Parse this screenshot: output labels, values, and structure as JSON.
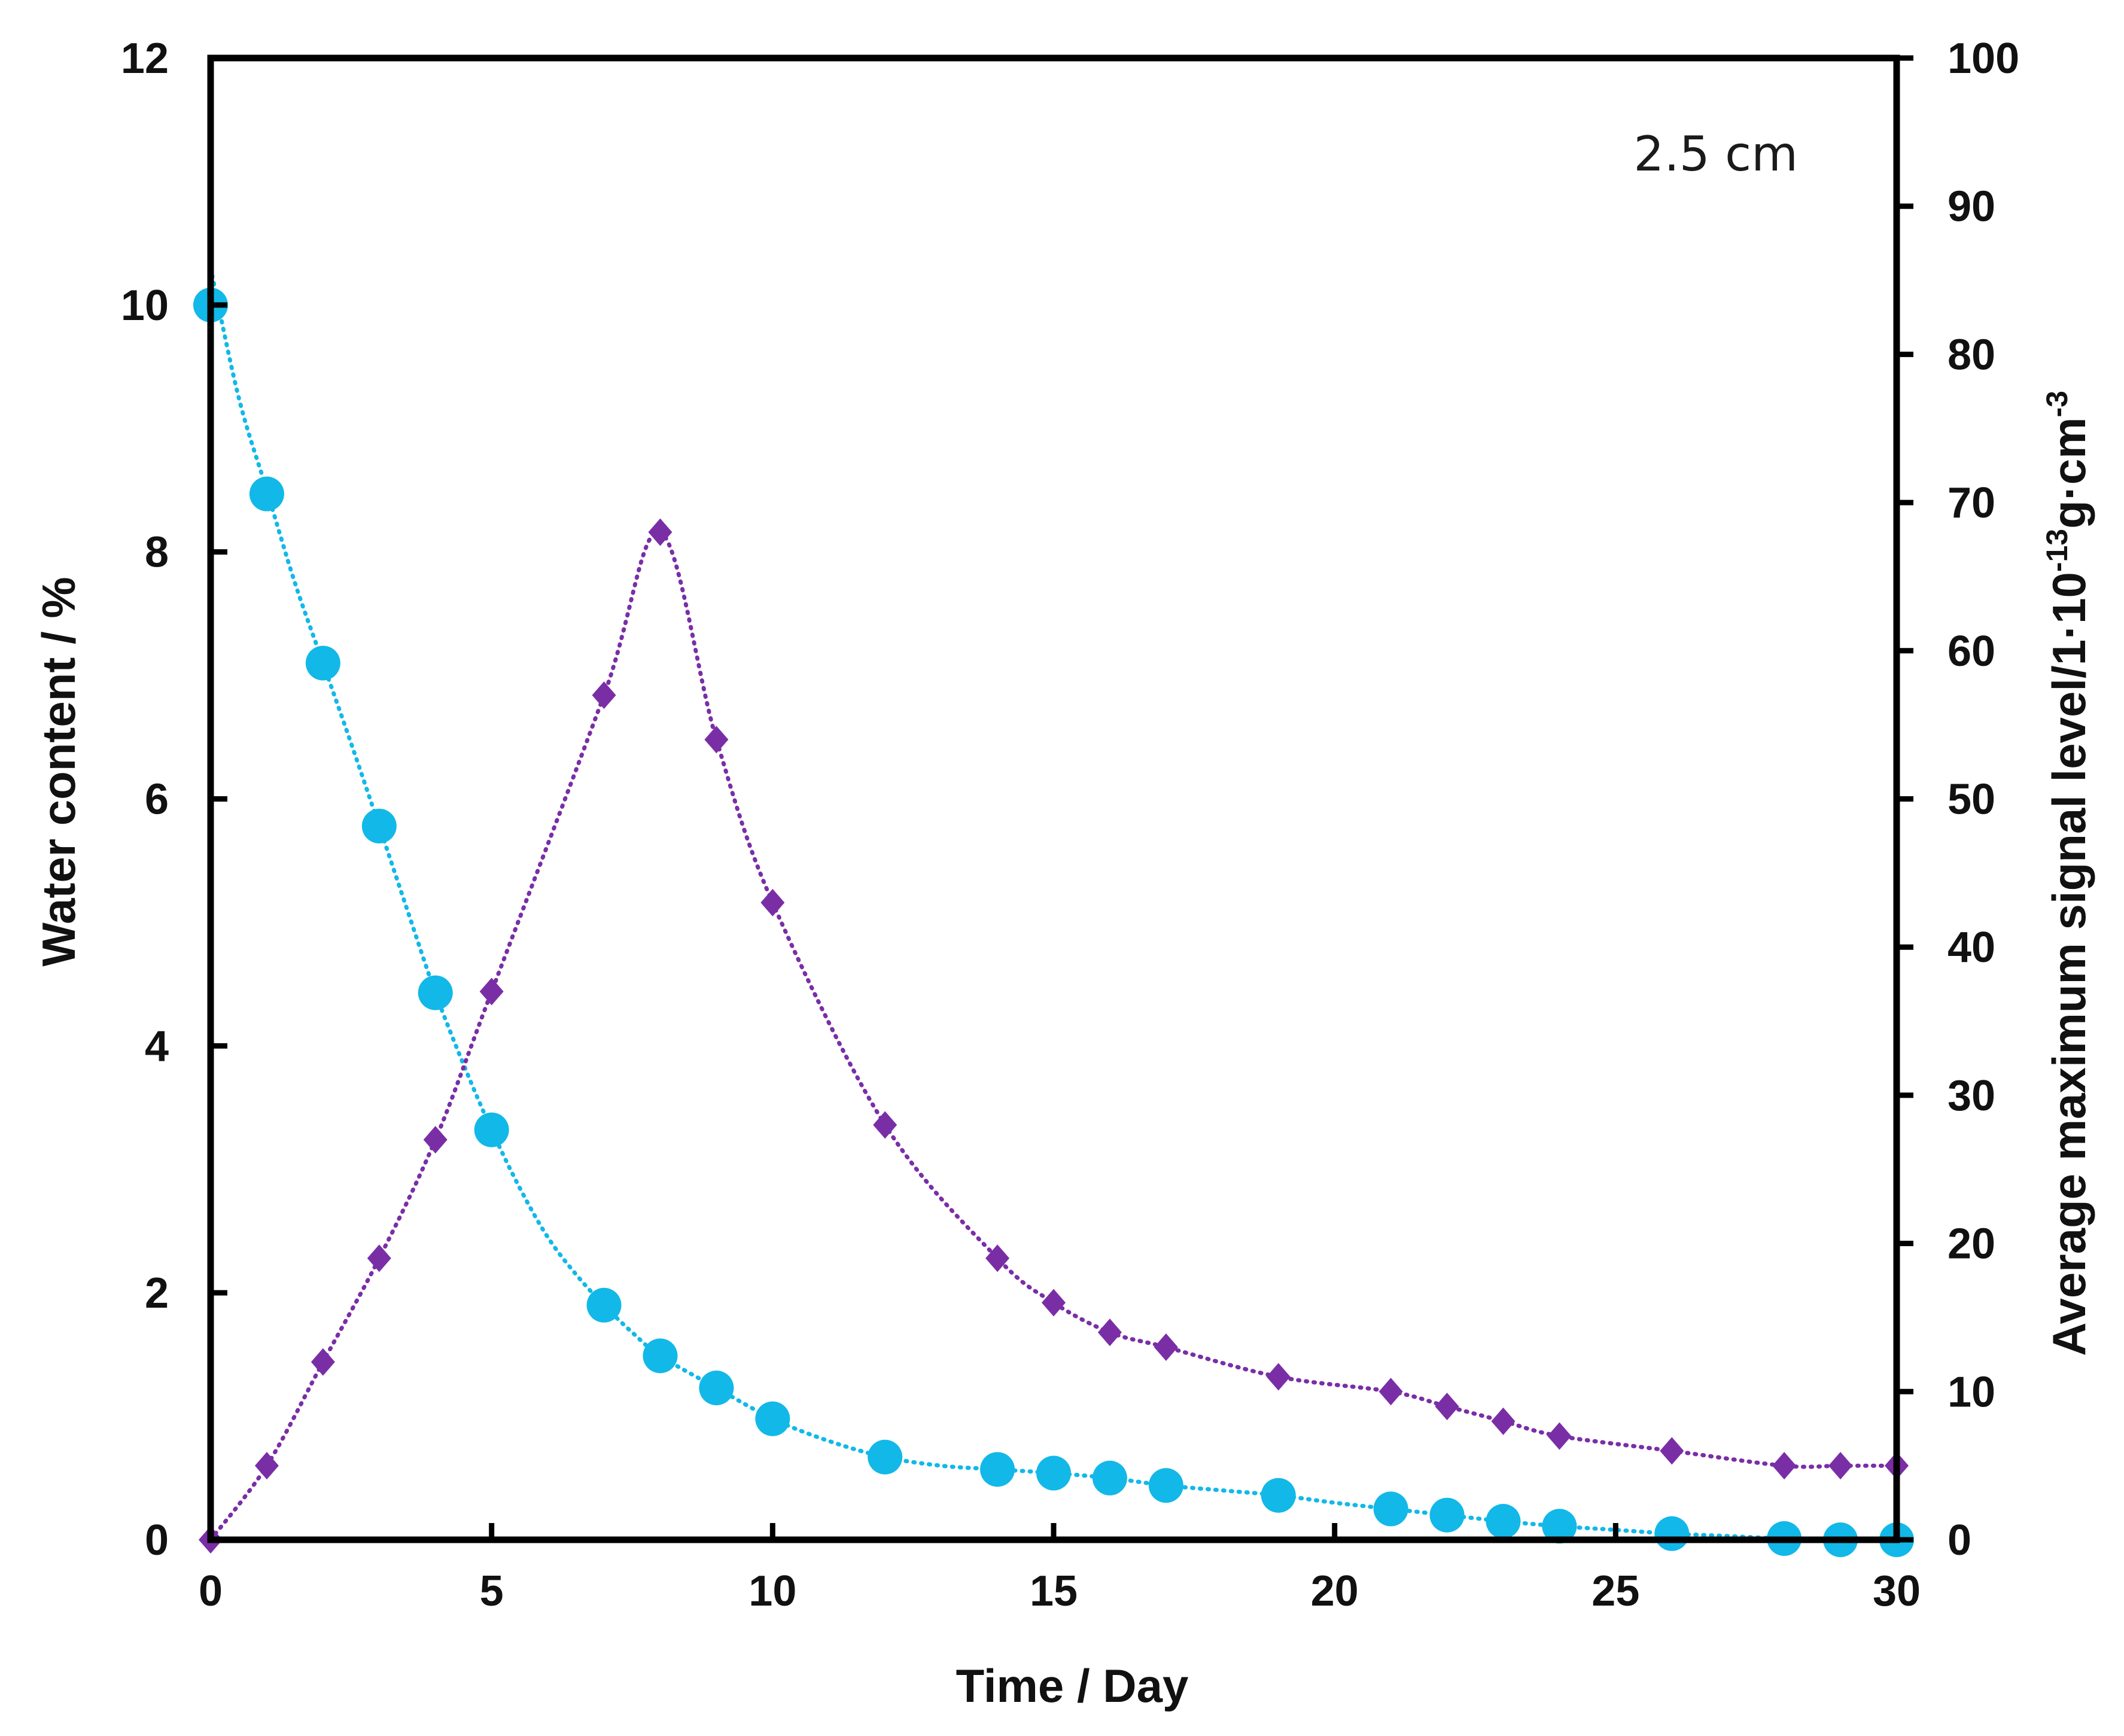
{
  "chart_data": {
    "type": "scatter",
    "title": "",
    "annotation": "2.5 cm",
    "xlabel": "Time / Day",
    "ylabel_left": "Water content / %",
    "ylabel_right": {
      "prefix": "Average maximum signal level/1·10",
      "exp1": "-13",
      "mid": "g·cm",
      "exp2": "-3"
    },
    "xlim": [
      0,
      30
    ],
    "ylim_left": [
      0,
      12
    ],
    "ylim_right": [
      0,
      100
    ],
    "x_ticks": [
      "0",
      "5",
      "10",
      "15",
      "20",
      "25",
      "30"
    ],
    "y_left_ticks": [
      "0",
      "2",
      "4",
      "6",
      "8",
      "10",
      "12"
    ],
    "y_right_ticks": [
      "0",
      "10",
      "20",
      "30",
      "40",
      "50",
      "60",
      "70",
      "80",
      "90",
      "100"
    ],
    "grid": false,
    "series": [
      {
        "name": "Water content",
        "axis": "left",
        "marker": "circle",
        "color": "#12b8e8",
        "x": [
          0,
          1,
          2,
          3,
          4,
          5,
          7,
          8,
          9,
          10,
          12,
          14,
          15,
          16,
          17,
          19,
          21,
          22,
          23,
          24,
          26,
          28,
          29,
          30
        ],
        "y": [
          10.0,
          8.47,
          7.1,
          5.78,
          4.43,
          3.32,
          1.9,
          1.49,
          1.23,
          0.98,
          0.67,
          0.57,
          0.54,
          0.5,
          0.44,
          0.36,
          0.25,
          0.2,
          0.15,
          0.11,
          0.05,
          0.01,
          0.0,
          0.0
        ],
        "fit_line": {
          "x": [
            0,
            0.5,
            1,
            1.5,
            2,
            2.5,
            3,
            3.5,
            4,
            4.5,
            5,
            5.5,
            6,
            6.5,
            7,
            7.5,
            8,
            9,
            10,
            11,
            12,
            13,
            14,
            15,
            16,
            17,
            18,
            19,
            20,
            21,
            22,
            23,
            24,
            25,
            26,
            27,
            28,
            29,
            30
          ],
          "y": [
            10.3,
            9.25,
            8.5,
            7.75,
            7.1,
            6.45,
            5.78,
            5.1,
            4.43,
            3.85,
            3.32,
            2.85,
            2.45,
            2.15,
            1.9,
            1.68,
            1.49,
            1.23,
            0.98,
            0.8,
            0.67,
            0.6,
            0.57,
            0.54,
            0.5,
            0.44,
            0.4,
            0.36,
            0.3,
            0.25,
            0.2,
            0.15,
            0.11,
            0.08,
            0.05,
            0.03,
            0.01,
            0.0,
            0.0
          ]
        }
      },
      {
        "name": "Average maximum signal level",
        "axis": "right",
        "marker": "diamond",
        "color": "#7a2ea6",
        "x": [
          0,
          1,
          2,
          3,
          4,
          5,
          7,
          8,
          9,
          10,
          12,
          14,
          15,
          16,
          17,
          19,
          21,
          22,
          23,
          24,
          26,
          28,
          29,
          30
        ],
        "y": [
          0,
          5,
          12,
          19,
          27,
          37,
          57,
          68,
          54,
          43,
          28,
          19,
          16,
          14,
          13,
          11,
          10,
          9,
          8,
          7,
          6,
          5,
          5,
          5
        ]
      }
    ]
  }
}
